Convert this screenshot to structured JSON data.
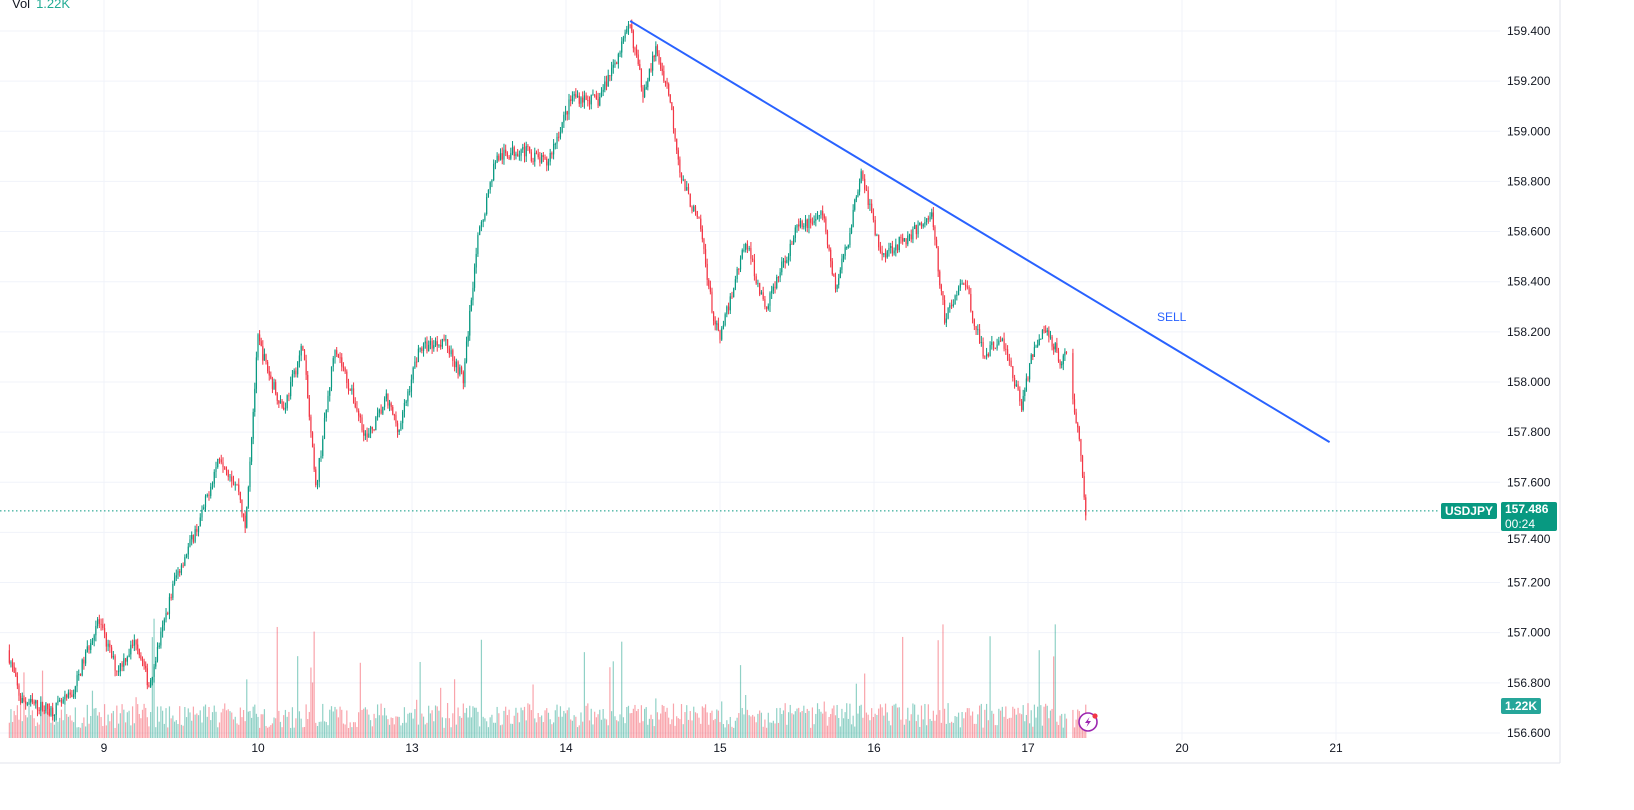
{
  "legend": {
    "label": "Vol",
    "value": "1.22K"
  },
  "symbol_tag": "USDJPY",
  "last_price_tag": "157.486",
  "countdown": "00:24",
  "volume_tag": "1.22K",
  "annotation": "SELL",
  "colors": {
    "up": "#089981",
    "down": "#f23645",
    "trendline": "#2962ff",
    "price_line": "#089981",
    "volume_tag": "#26a69a",
    "grid": "#f0f3fa"
  },
  "icons": {
    "alert": "lightning-icon"
  },
  "chart_data": {
    "type": "candlestick",
    "symbol": "USDJPY",
    "last_price": 157.486,
    "ylim": [
      156.6,
      159.4
    ],
    "y_ticks": [
      "156.600",
      "156.800",
      "157.000",
      "157.200",
      "157.400",
      "157.600",
      "157.800",
      "158.000",
      "158.200",
      "158.400",
      "158.600",
      "158.800",
      "159.000",
      "159.200",
      "159.400"
    ],
    "x_tick_labels": [
      "9",
      "10",
      "13",
      "14",
      "15",
      "16",
      "17",
      "20",
      "21"
    ],
    "sessions": [
      "8",
      "9",
      "10",
      "13",
      "14",
      "15",
      "16",
      "17",
      "20",
      "21"
    ],
    "grid": true,
    "price_path": [
      [
        "8",
        9,
        156.93
      ],
      [
        "8",
        11,
        156.73
      ],
      [
        "8",
        16,
        156.69
      ],
      [
        "8",
        19,
        156.75
      ],
      [
        "8",
        23,
        157.05
      ],
      [
        "9",
        2,
        156.85
      ],
      [
        "9",
        5,
        156.97
      ],
      [
        "9",
        7,
        156.79
      ],
      [
        "9",
        11,
        157.21
      ],
      [
        "9",
        15,
        157.45
      ],
      [
        "9",
        18,
        157.71
      ],
      [
        "9",
        21,
        157.57
      ],
      [
        "9",
        22,
        157.41
      ],
      [
        "10",
        0,
        158.17
      ],
      [
        "10",
        2,
        158.01
      ],
      [
        "10",
        4,
        157.89
      ],
      [
        "10",
        7,
        158.15
      ],
      [
        "10",
        9,
        157.57
      ],
      [
        "10",
        12,
        158.15
      ],
      [
        "10",
        17,
        157.77
      ],
      [
        "10",
        20,
        157.93
      ],
      [
        "10",
        22,
        157.81
      ],
      [
        "13",
        1,
        158.13
      ],
      [
        "13",
        5,
        158.17
      ],
      [
        "13",
        8,
        158.01
      ],
      [
        "13",
        10,
        158.53
      ],
      [
        "13",
        13,
        158.89
      ],
      [
        "13",
        17,
        158.93
      ],
      [
        "13",
        21,
        158.87
      ],
      [
        "14",
        1,
        159.14
      ],
      [
        "14",
        5,
        159.12
      ],
      [
        "14",
        10,
        159.42
      ],
      [
        "14",
        12,
        159.16
      ],
      [
        "14",
        14,
        159.32
      ],
      [
        "14",
        16,
        159.16
      ],
      [
        "14",
        18,
        158.81
      ],
      [
        "14",
        21,
        158.61
      ],
      [
        "14",
        23,
        158.25
      ],
      [
        "15",
        0,
        158.17
      ],
      [
        "15",
        4,
        158.57
      ],
      [
        "15",
        7,
        158.29
      ],
      [
        "15",
        12,
        158.61
      ],
      [
        "15",
        16,
        158.67
      ],
      [
        "15",
        18,
        158.37
      ],
      [
        "15",
        20,
        158.57
      ],
      [
        "15",
        22,
        158.85
      ],
      [
        "16",
        1,
        158.51
      ],
      [
        "16",
        5,
        158.57
      ],
      [
        "16",
        9,
        158.67
      ],
      [
        "16",
        11,
        158.25
      ],
      [
        "16",
        14,
        158.41
      ],
      [
        "16",
        17,
        158.11
      ],
      [
        "16",
        20,
        158.17
      ],
      [
        "16",
        23,
        157.91
      ],
      [
        "17",
        1,
        158.15
      ],
      [
        "17",
        3,
        158.21
      ],
      [
        "17",
        5,
        158.09
      ],
      [
        "17",
        6,
        158.11
      ],
      [
        "17",
        7,
        157.93
      ],
      [
        "17",
        8,
        157.77
      ],
      [
        "17",
        9,
        157.47
      ]
    ],
    "trendline": {
      "start": [
        "14",
        10,
        159.44
      ],
      "end": [
        "20",
        23,
        157.76
      ],
      "label": "SELL"
    },
    "volume_last": "1.22K"
  }
}
